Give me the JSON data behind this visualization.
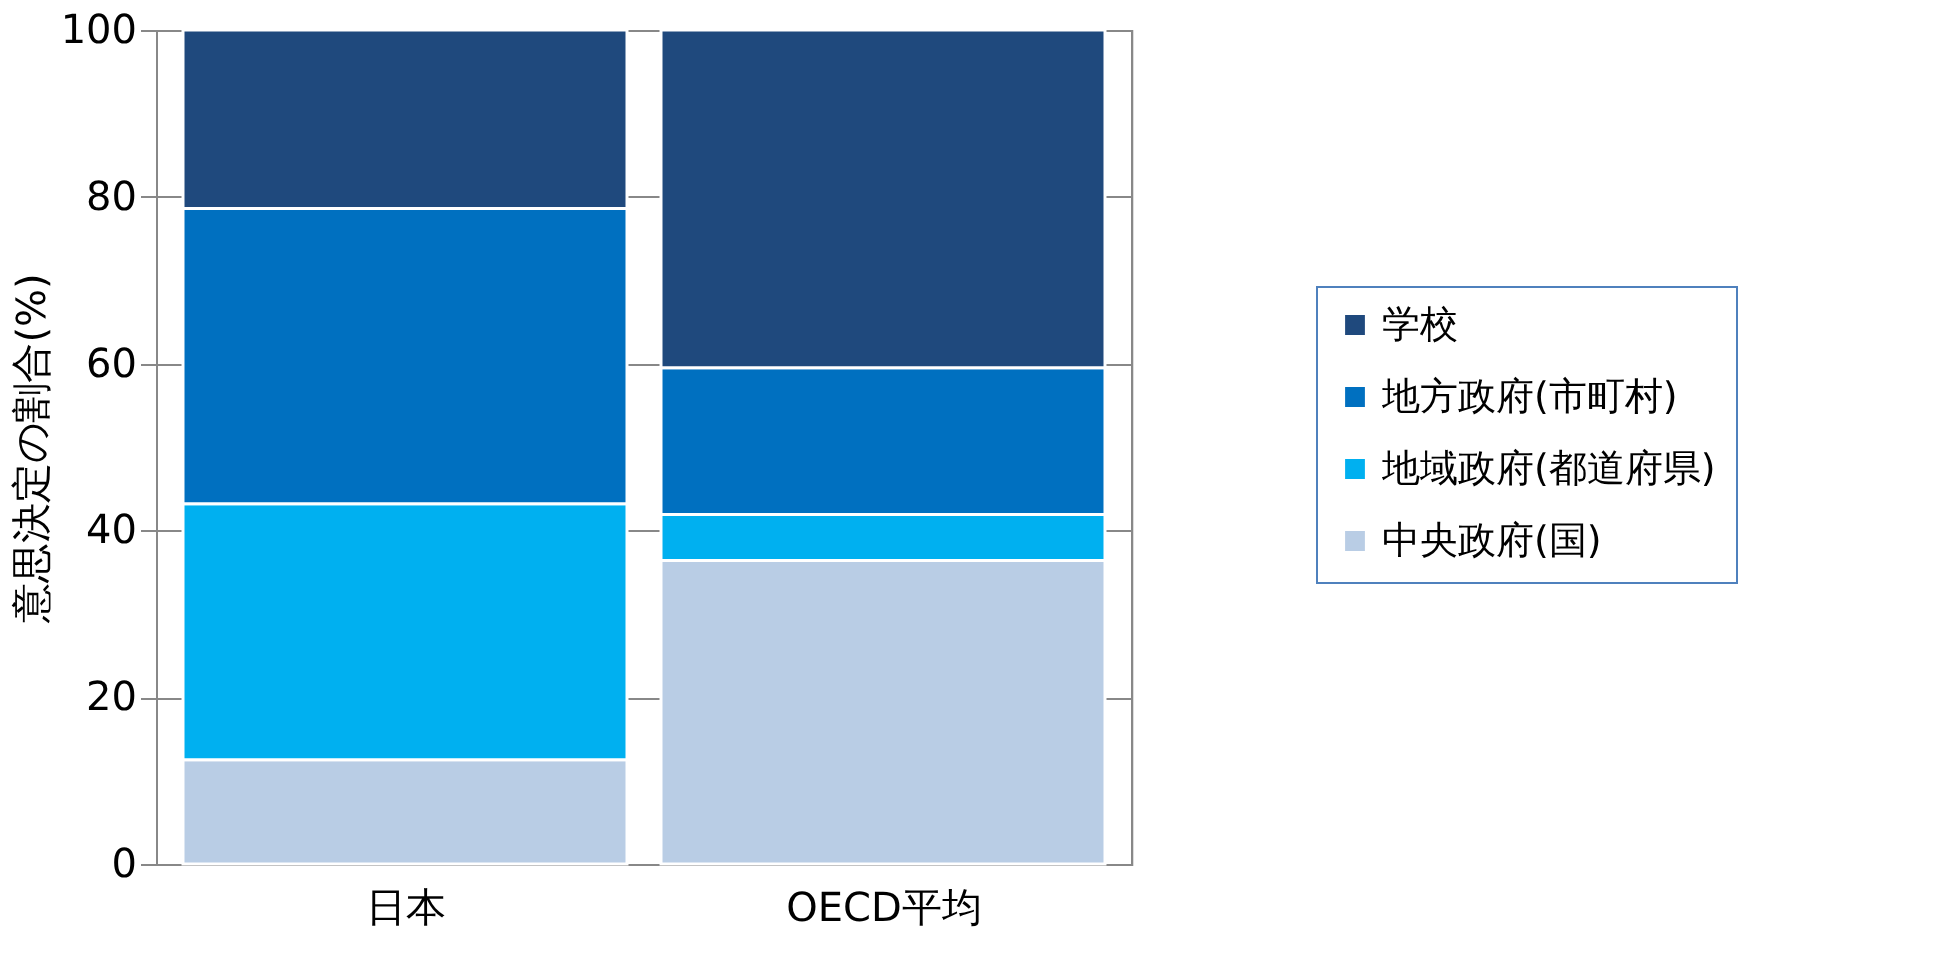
{
  "chart_data": {
    "type": "bar",
    "stacked": true,
    "ylabel": "意思決定の割合(%)",
    "categories": [
      "日本",
      "OECD平均"
    ],
    "series": [
      {
        "name": "中央政府(国)",
        "color": "#b9cde5",
        "values": [
          12.5,
          36.4
        ]
      },
      {
        "name": "地域政府(都道府県)",
        "color": "#00b0f0",
        "values": [
          30.7,
          5.5
        ]
      },
      {
        "name": "地方政府(市町村)",
        "color": "#0070c0",
        "values": [
          35.4,
          17.6
        ]
      },
      {
        "name": "学校",
        "color": "#1f497d",
        "values": [
          21.4,
          40.5
        ]
      }
    ],
    "ylim": [
      0,
      100
    ],
    "yticks": [
      0,
      20,
      40,
      60,
      80,
      100
    ],
    "grid": "y",
    "legend": "right"
  }
}
